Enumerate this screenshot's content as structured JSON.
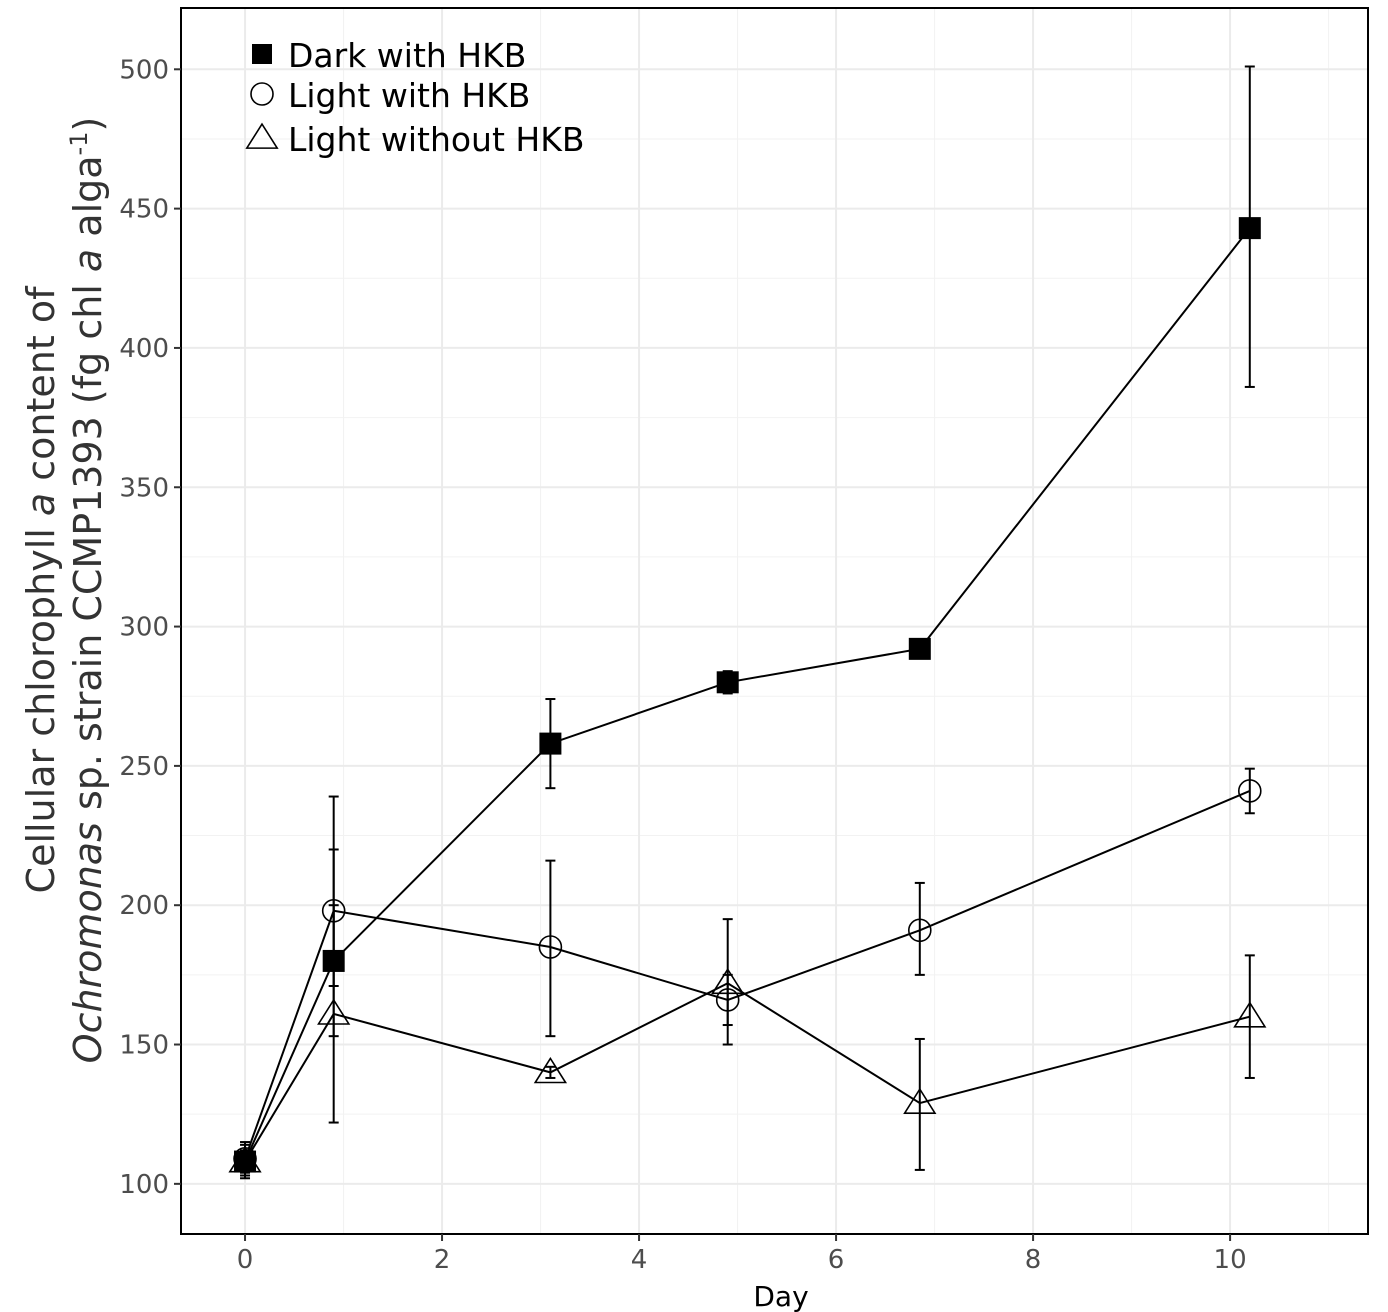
{
  "chart_data": {
    "type": "line",
    "xlabel": "Day",
    "ylabel": {
      "line1": {
        "a": "Cellular chlorophyll ",
        "b": "a",
        "c": " content of"
      },
      "line2": {
        "a": "Ochromonas",
        "b": " sp. strain CCMP1393 (fg chl ",
        "c": "a",
        "d": " alga",
        "e": "-1",
        "f": ")"
      }
    },
    "xlim": [
      -0.65,
      11.4
    ],
    "ylim": [
      82,
      522
    ],
    "x_ticks": [
      0,
      2,
      4,
      6,
      8,
      10
    ],
    "y_ticks": [
      100,
      150,
      200,
      250,
      300,
      350,
      400,
      450,
      500
    ],
    "x_ticks_labels": [
      "0",
      "2",
      "4",
      "6",
      "8",
      "10"
    ],
    "y_ticks_labels": [
      "100",
      "150",
      "200",
      "250",
      "300",
      "350",
      "400",
      "450",
      "500"
    ],
    "grid": true,
    "legend_position": "top-left",
    "series": [
      {
        "name": "Dark with HKB",
        "marker": "filled-square",
        "points": [
          {
            "x": 0,
            "y": 108,
            "lo": 102,
            "hi": 115
          },
          {
            "x": 0.9,
            "y": 180,
            "lo": 171,
            "hi": 220
          },
          {
            "x": 3.1,
            "y": 258,
            "lo": 242,
            "hi": 274
          },
          {
            "x": 4.9,
            "y": 280,
            "lo": 276,
            "hi": 284
          },
          {
            "x": 6.85,
            "y": 292,
            "lo": 292,
            "hi": 292
          },
          {
            "x": 10.2,
            "y": 443,
            "lo": 386,
            "hi": 501
          }
        ]
      },
      {
        "name": "Light with HKB",
        "marker": "open-circle",
        "points": [
          {
            "x": 0,
            "y": 109,
            "lo": 104,
            "hi": 114
          },
          {
            "x": 0.9,
            "y": 198,
            "lo": 153,
            "hi": 239
          },
          {
            "x": 3.1,
            "y": 185,
            "lo": 153,
            "hi": 216
          },
          {
            "x": 4.9,
            "y": 166,
            "lo": 157,
            "hi": 175
          },
          {
            "x": 6.85,
            "y": 191,
            "lo": 175,
            "hi": 208
          },
          {
            "x": 10.2,
            "y": 241,
            "lo": 233,
            "hi": 249
          }
        ]
      },
      {
        "name": "Light without HKB",
        "marker": "open-triangle",
        "points": [
          {
            "x": 0,
            "y": 108,
            "lo": 103,
            "hi": 112
          },
          {
            "x": 0.9,
            "y": 161,
            "lo": 122,
            "hi": 200
          },
          {
            "x": 3.1,
            "y": 140,
            "lo": 138,
            "hi": 142
          },
          {
            "x": 4.9,
            "y": 172,
            "lo": 150,
            "hi": 195
          },
          {
            "x": 6.85,
            "y": 129,
            "lo": 105,
            "hi": 152
          },
          {
            "x": 10.2,
            "y": 160,
            "lo": 138,
            "hi": 182
          }
        ]
      }
    ]
  }
}
